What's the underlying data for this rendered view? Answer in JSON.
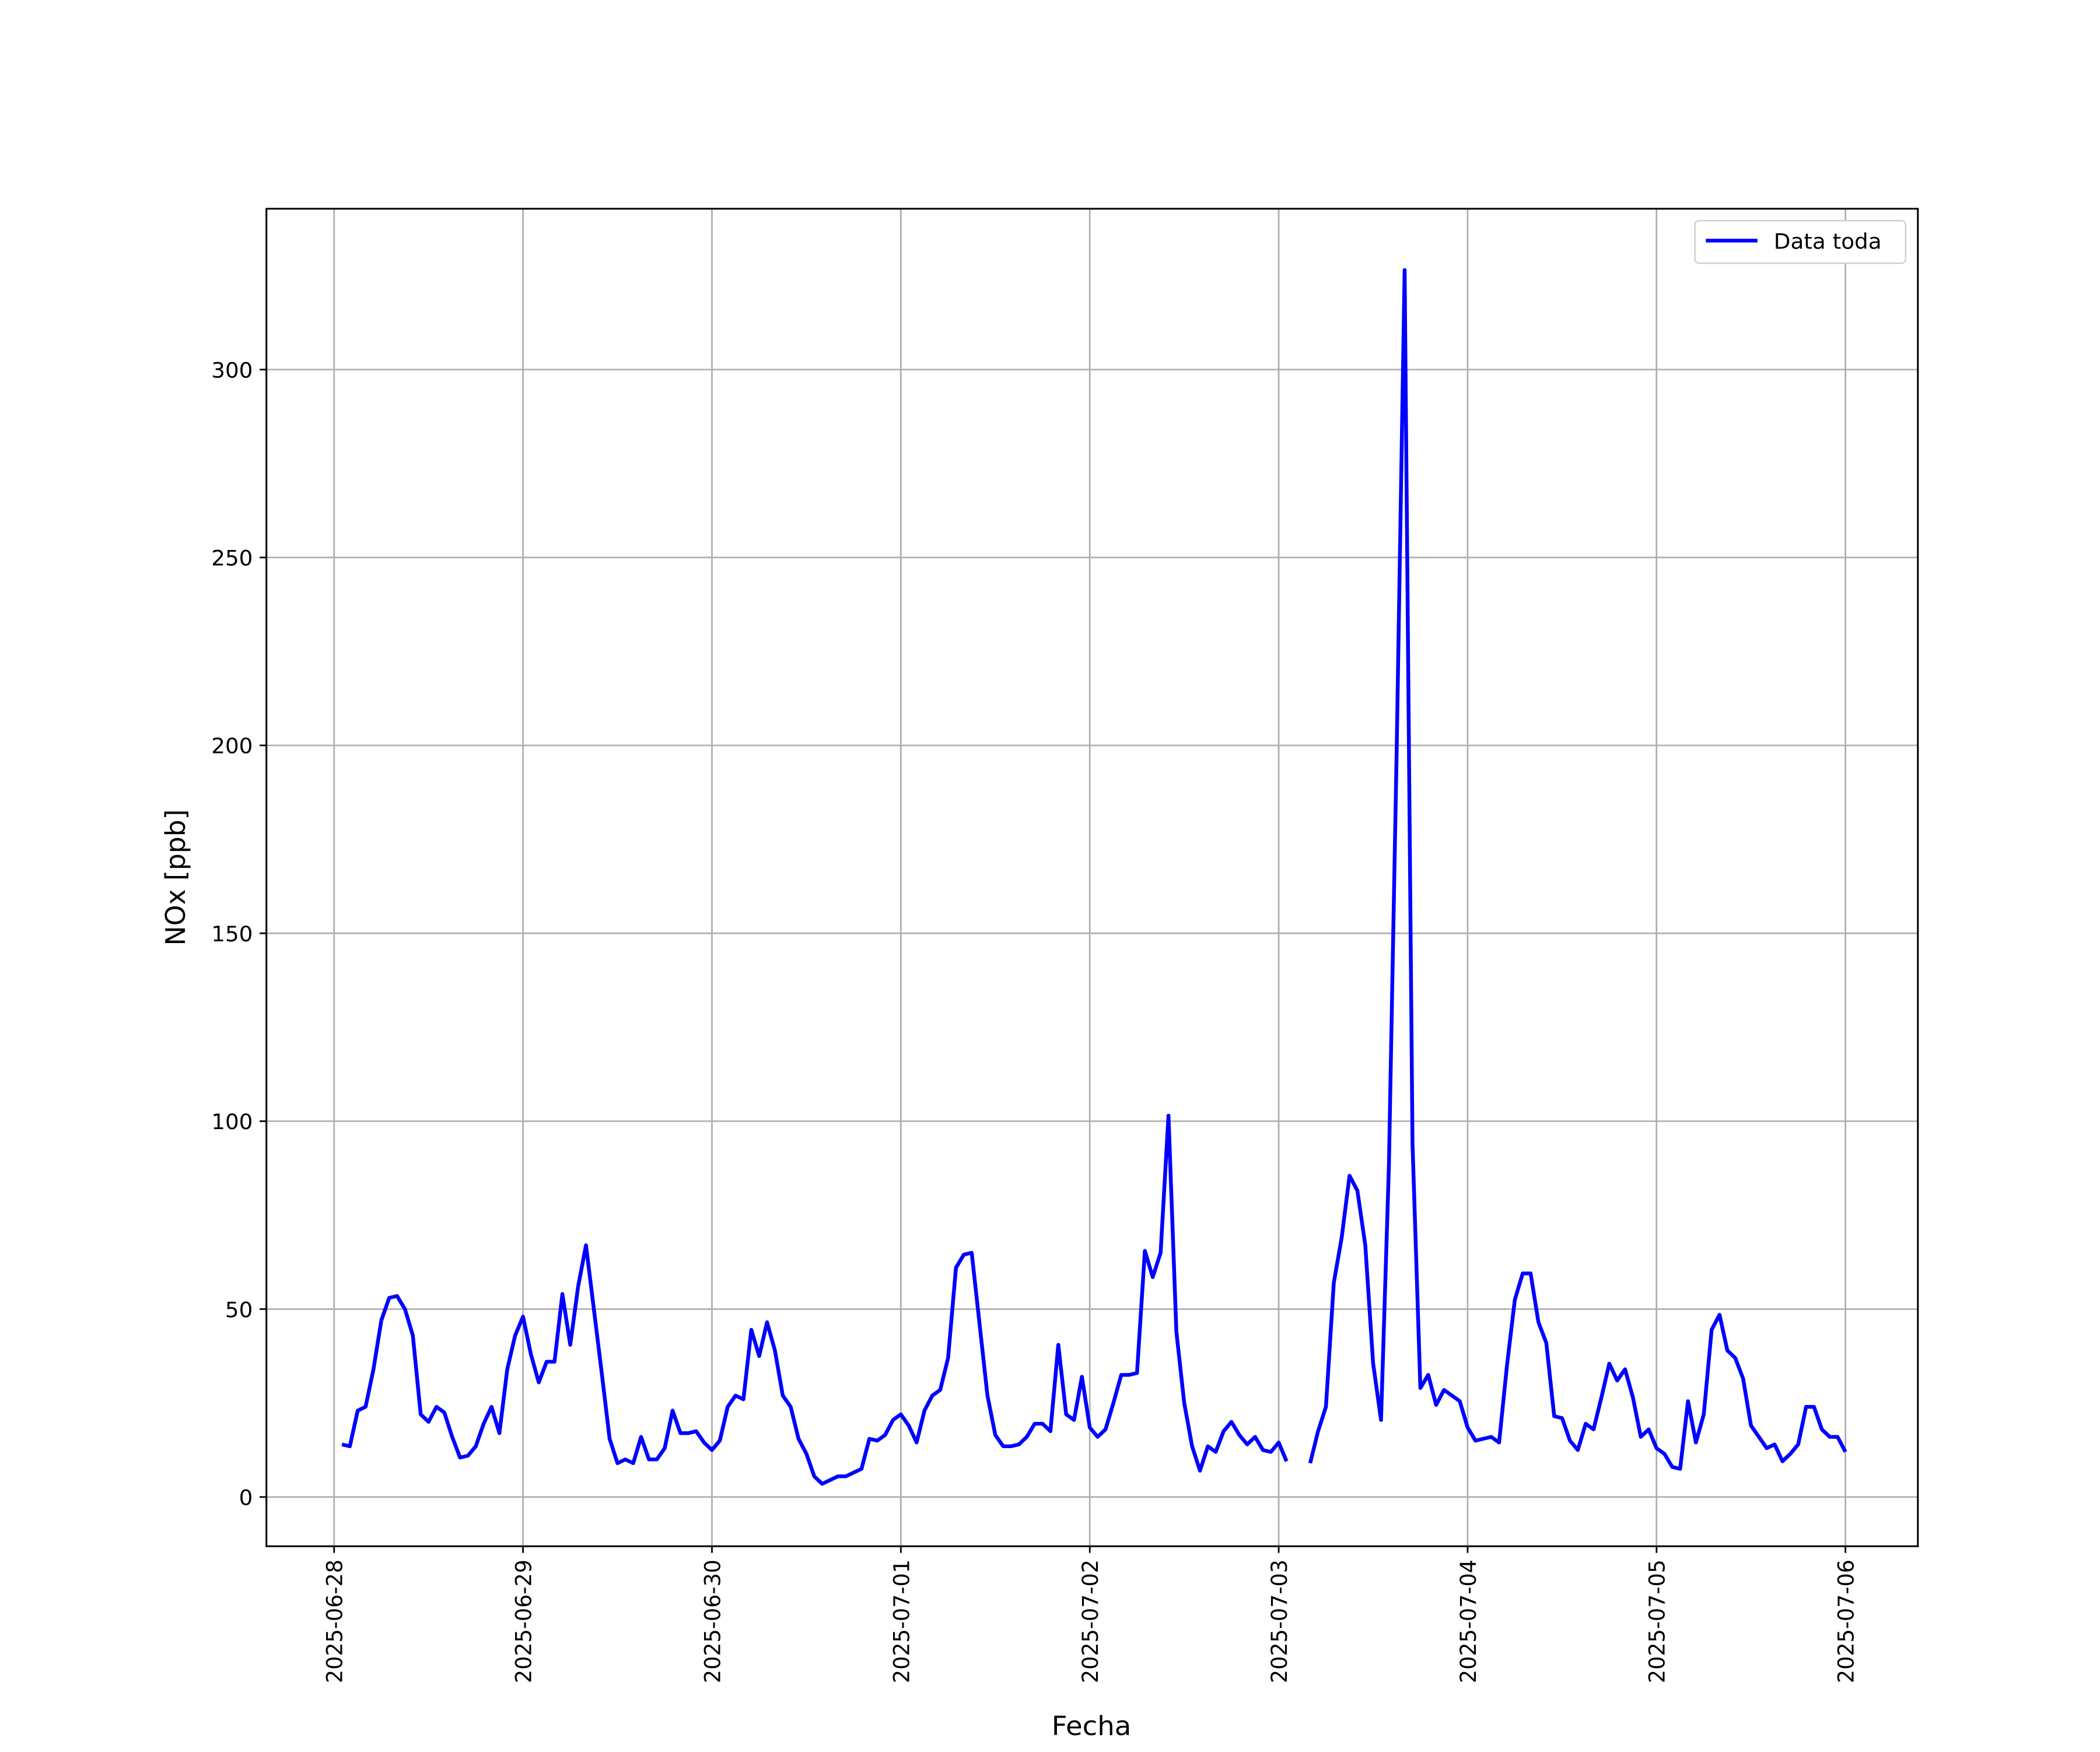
{
  "chart_data": {
    "type": "line",
    "x_label": "Fecha",
    "y_label": "NOx [ppb]",
    "categories": [
      "2025-06-28",
      null,
      null,
      null,
      null,
      null,
      null,
      null,
      null,
      null,
      null,
      null,
      null,
      null,
      null,
      null,
      null,
      null,
      null,
      null,
      null,
      null,
      null,
      null,
      "2025-06-29",
      null,
      null,
      null,
      null,
      null,
      null,
      null,
      null,
      null,
      null,
      null,
      null,
      null,
      null,
      null,
      null,
      null,
      null,
      null,
      null,
      null,
      null,
      null,
      "2025-06-30",
      null,
      null,
      null,
      null,
      null,
      null,
      null,
      null,
      null,
      null,
      null,
      null,
      null,
      null,
      null,
      null,
      null,
      null,
      null,
      null,
      null,
      null,
      null,
      "2025-07-01",
      null,
      null,
      null,
      null,
      null,
      null,
      null,
      null,
      null,
      null,
      null,
      null,
      null,
      null,
      null,
      null,
      null,
      null,
      null,
      null,
      null,
      null,
      null,
      "2025-07-02",
      null,
      null,
      null,
      null,
      null,
      null,
      null,
      null,
      null,
      null,
      null,
      null,
      null,
      null,
      null,
      null,
      null,
      null,
      null,
      null,
      null,
      null,
      null,
      "2025-07-03",
      null,
      null,
      null,
      null,
      null,
      null,
      null,
      null,
      null,
      null,
      null,
      null,
      null,
      null,
      null,
      null,
      null,
      null,
      null,
      null,
      null,
      null,
      null,
      "2025-07-04",
      null,
      null,
      null,
      null,
      null,
      null,
      null,
      null,
      null,
      null,
      null,
      null,
      null,
      null,
      null,
      null,
      null,
      null,
      null,
      null,
      null,
      null,
      null,
      "2025-07-05",
      null,
      null,
      null,
      null,
      null,
      null,
      null,
      null,
      null,
      null,
      null,
      null,
      null,
      null,
      null,
      null,
      null,
      null,
      null,
      null,
      null,
      null,
      null,
      "2025-07-06"
    ],
    "series": [
      {
        "name": "Data toda",
        "color": "#0000ff",
        "values": [
          null,
          14,
          13.5,
          23,
          24,
          34,
          47,
          53,
          53.5,
          50,
          43,
          22,
          20,
          24,
          22.5,
          16,
          10.5,
          11,
          13.5,
          19.5,
          24,
          17,
          34,
          43,
          48,
          38,
          30.5,
          36,
          36,
          54,
          40.5,
          56,
          67,
          50,
          33,
          15.5,
          9,
          10,
          9,
          16,
          10,
          10,
          13,
          23,
          17,
          17,
          17.5,
          14.5,
          12.5,
          15,
          24,
          27,
          26,
          44.5,
          37.5,
          46.5,
          39,
          27,
          24,
          15.5,
          11.5,
          5.5,
          3.5,
          4.5,
          5.5,
          5.5,
          6.5,
          7.5,
          15.5,
          15,
          16.5,
          20.5,
          22,
          19,
          14.5,
          23,
          27,
          28.5,
          37,
          61,
          64.5,
          65,
          46,
          27,
          16.5,
          13.5,
          13.5,
          14,
          16,
          19.5,
          19.5,
          17.5,
          40.5,
          22,
          20.5,
          32,
          18.5,
          16,
          18,
          25,
          32.5,
          32.5,
          33,
          65.5,
          58.5,
          65,
          101.5,
          44,
          25,
          13.5,
          7,
          13.5,
          12,
          17.5,
          20,
          16.5,
          14,
          16,
          12.5,
          12,
          14.5,
          9.5,
          null,
          null,
          9,
          17.5,
          24,
          57,
          69,
          85.5,
          81.5,
          67,
          35.5,
          20.5,
          88,
          200,
          326.5,
          94,
          29,
          32.5,
          24.5,
          28.5,
          27,
          25.5,
          18.5,
          15,
          15.5,
          16,
          14.5,
          35,
          52.5,
          59.5,
          59.5,
          46.5,
          41,
          21.5,
          21,
          15,
          12.5,
          19.5,
          18,
          26.5,
          35.5,
          31,
          34,
          26.5,
          16,
          18,
          13,
          11.5,
          8,
          7.5,
          25.5,
          14.5,
          22,
          44.5,
          48.5,
          39,
          37,
          31.5,
          19,
          16,
          13,
          14,
          9.5,
          11.5,
          14,
          24,
          24,
          18,
          16,
          16,
          12
        ]
      }
    ],
    "xlim": [
      -8.6,
      201.2
    ],
    "ylim": [
      -13.1,
      342.8
    ],
    "yticks": [
      0,
      50,
      100,
      150,
      200,
      250,
      300
    ],
    "grid": true,
    "legend": "upper right"
  }
}
